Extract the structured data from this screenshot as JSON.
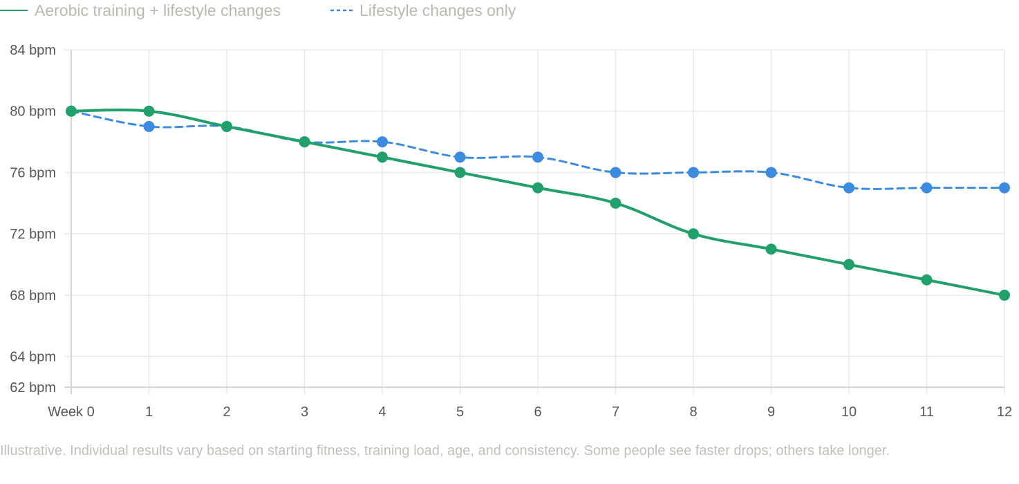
{
  "chart_data": {
    "type": "line",
    "x": [
      "Week 0",
      "1",
      "2",
      "3",
      "4",
      "5",
      "6",
      "7",
      "8",
      "9",
      "10",
      "11",
      "12"
    ],
    "series": [
      {
        "name": "Aerobic training + lifestyle changes",
        "values": [
          80,
          80,
          79,
          78,
          77,
          76,
          75,
          74,
          72,
          71,
          70,
          69,
          68
        ],
        "color": "#22a06b",
        "dash": "solid"
      },
      {
        "name": "Lifestyle changes only",
        "values": [
          80,
          79,
          79,
          78,
          78,
          77,
          77,
          76,
          76,
          76,
          75,
          75,
          75
        ],
        "color": "#3b8be0",
        "dash": "dashed"
      }
    ],
    "yticks": [
      {
        "value": 84,
        "label": "84 bpm"
      },
      {
        "value": 80,
        "label": "80 bpm"
      },
      {
        "value": 76,
        "label": "76 bpm"
      },
      {
        "value": 72,
        "label": "72 bpm"
      },
      {
        "value": 68,
        "label": "68 bpm"
      },
      {
        "value": 64,
        "label": "64 bpm"
      },
      {
        "value": 62,
        "label": "62 bpm"
      }
    ],
    "ylim": [
      62,
      84
    ],
    "grid": true,
    "legend_position": "top-left"
  },
  "caption": "Illustrative. Individual results vary based on starting fitness, training load, age, and consistency. Some people see faster drops; others take longer."
}
